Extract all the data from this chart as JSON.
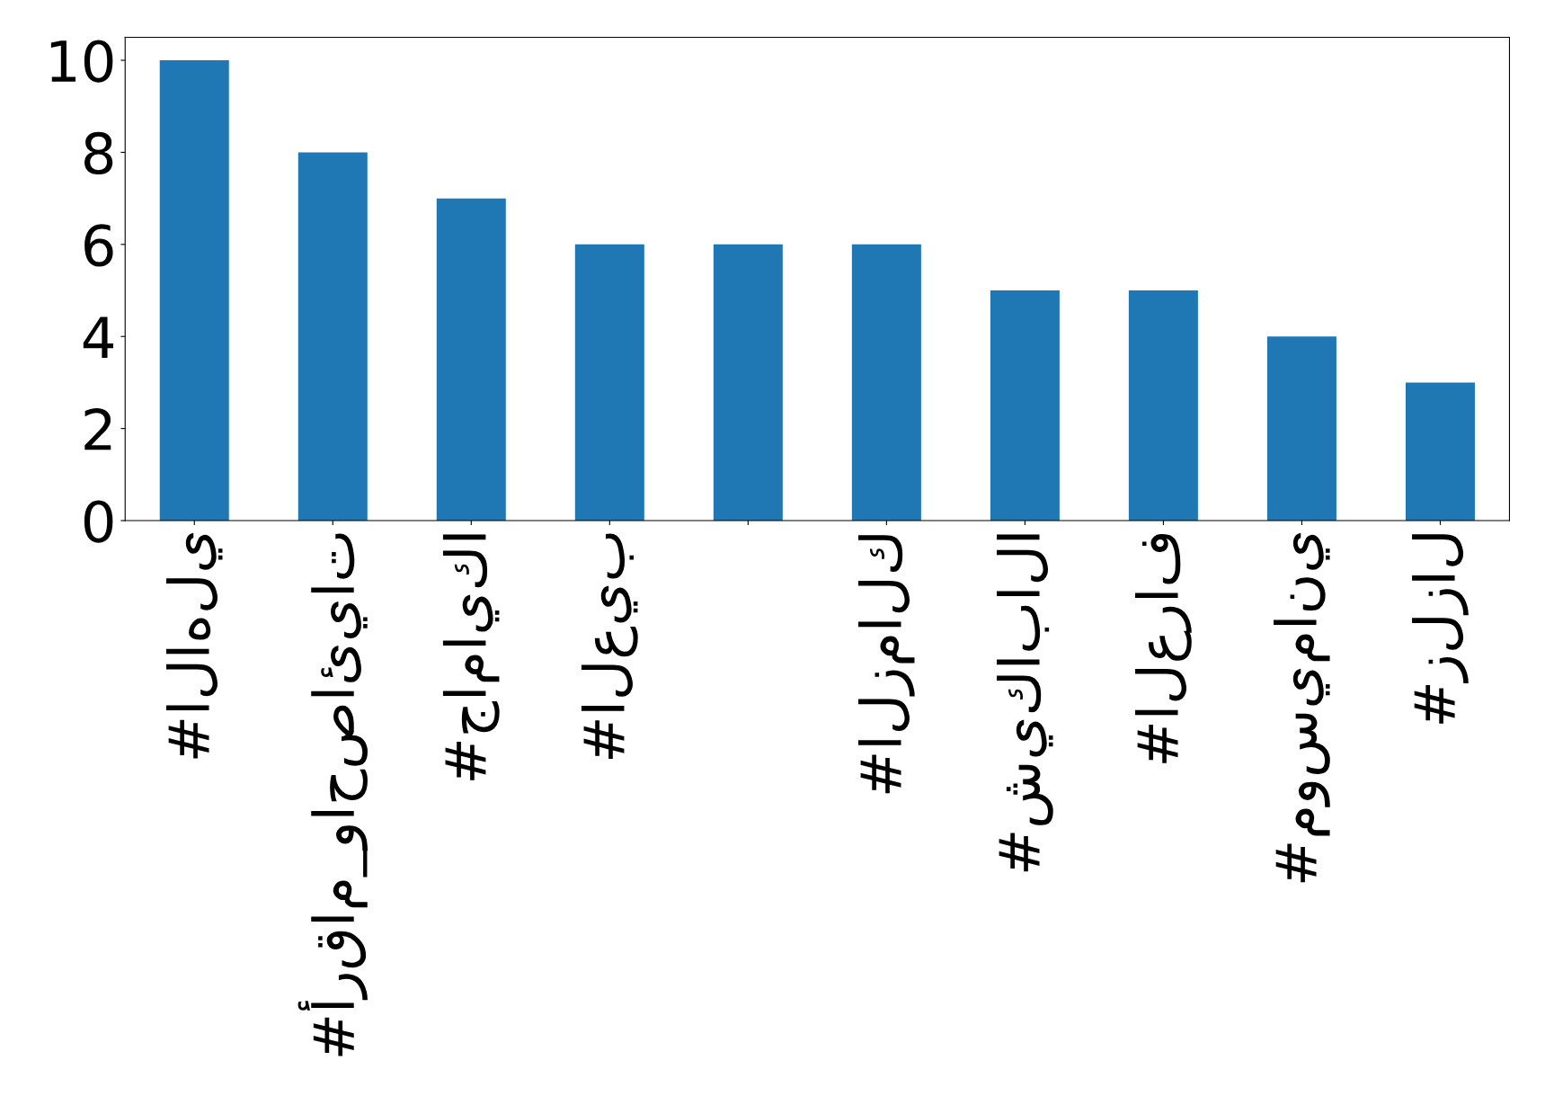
{
  "chart_data": {
    "type": "bar",
    "categories": [
      "#الاهلي",
      "#أرقام_واحصائيات",
      "#جامايكا",
      "#العيب",
      null,
      "#الزمالك",
      "#شيكابالا",
      "#العراف",
      "#موسيماني",
      "#زلزال"
    ],
    "values": [
      10,
      8,
      7,
      6,
      6,
      6,
      5,
      5,
      4,
      3
    ],
    "color": "#1f77b4",
    "ylim": [
      0,
      10.5
    ],
    "yticks": [
      0,
      2,
      4,
      6,
      8,
      10
    ],
    "grid": false,
    "legend": false
  }
}
